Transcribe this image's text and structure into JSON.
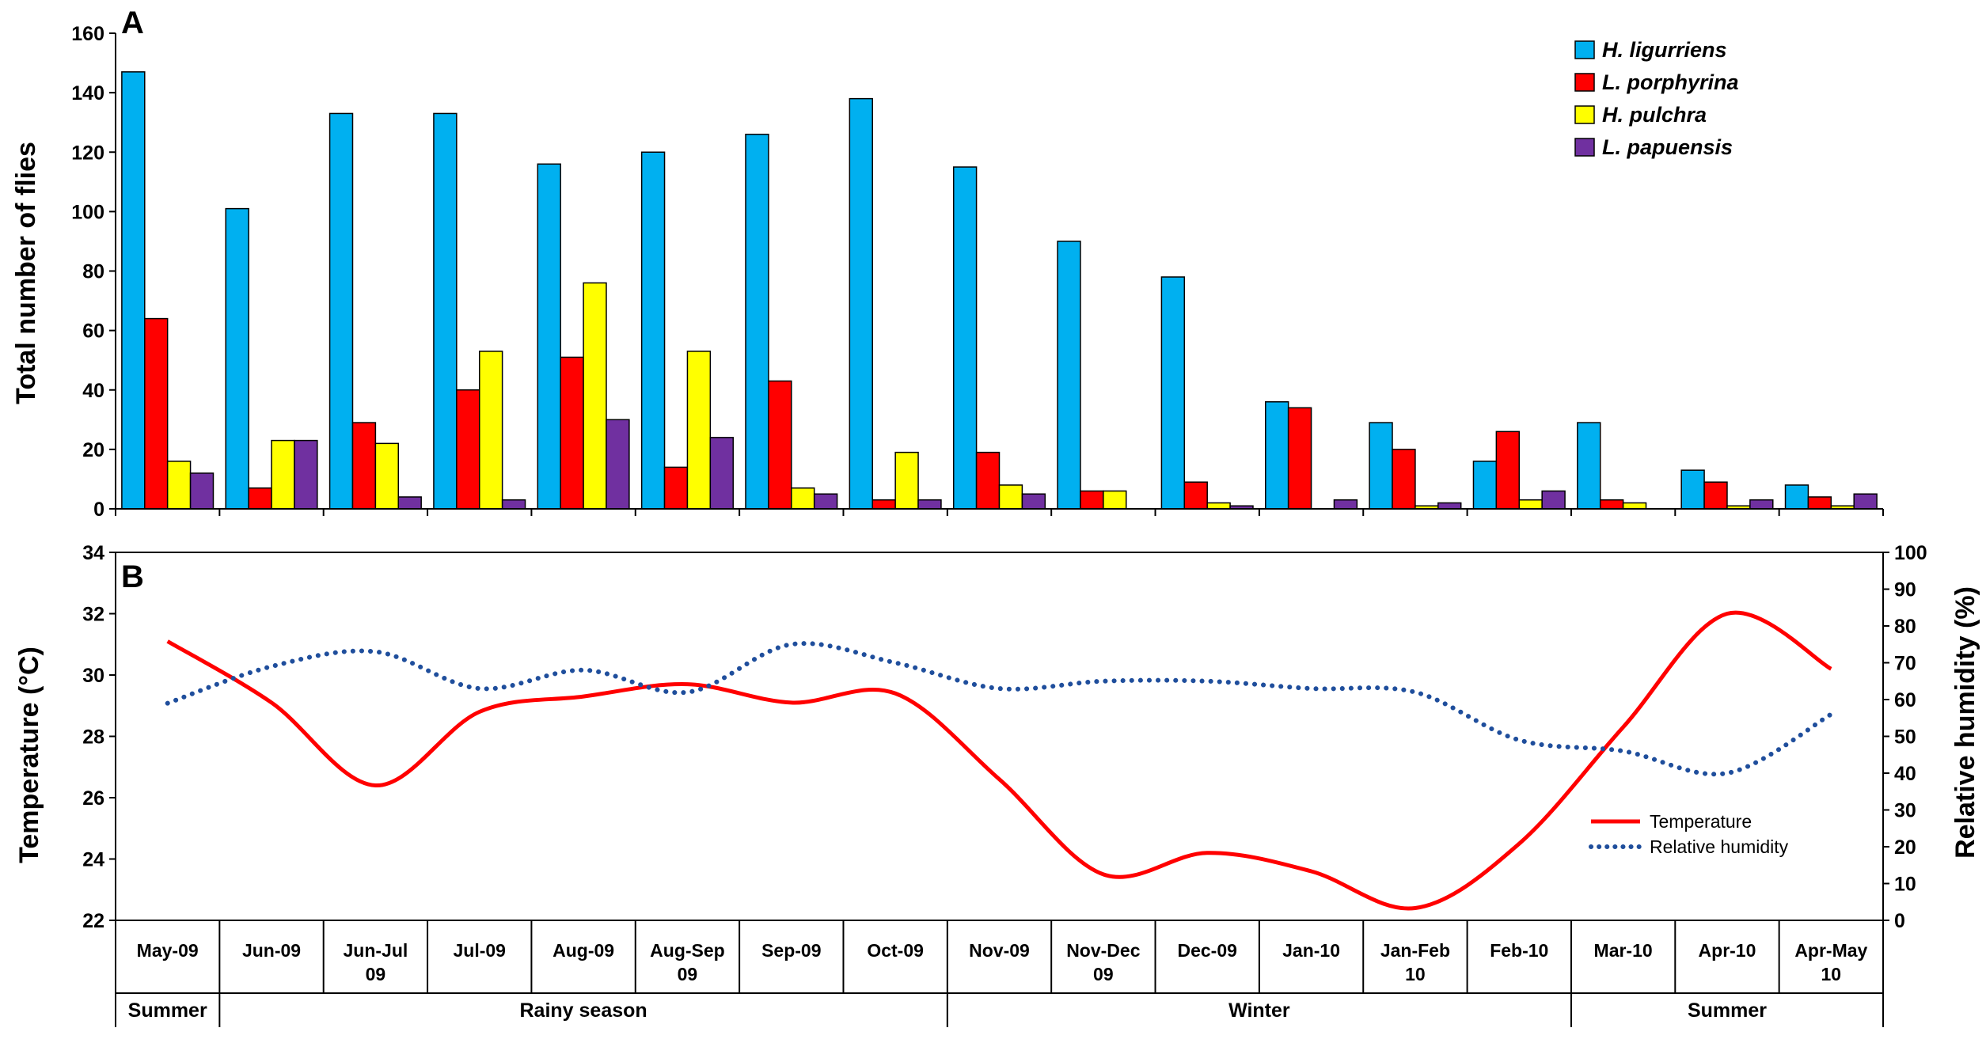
{
  "chart_data": [
    {
      "panel": "A",
      "type": "bar",
      "ylabel": "Total number of flies",
      "ylim": [
        0,
        160
      ],
      "yticks": [
        0,
        20,
        40,
        60,
        80,
        100,
        120,
        140,
        160
      ],
      "categories": [
        "May-09",
        "Jun-09",
        "Jun-Jul 09",
        "Jul-09",
        "Aug-09",
        "Aug-Sep 09",
        "Sep-09",
        "Oct-09",
        "Nov-09",
        "Nov-Dec 09",
        "Dec-09",
        "Jan-10",
        "Jan-Feb 10",
        "Feb-10",
        "Mar-10",
        "Apr-10",
        "Apr-May 10"
      ],
      "legend_position": "top-right",
      "series": [
        {
          "name": "H. ligurriens",
          "color": "#00B0F0",
          "values": [
            147,
            101,
            133,
            133,
            116,
            120,
            126,
            138,
            115,
            90,
            78,
            36,
            29,
            16,
            29,
            13,
            8
          ]
        },
        {
          "name": "L. porphyrina",
          "color": "#FF0000",
          "values": [
            64,
            7,
            29,
            40,
            51,
            14,
            43,
            3,
            19,
            6,
            9,
            34,
            20,
            26,
            3,
            9,
            4
          ]
        },
        {
          "name": "H. pulchra",
          "color": "#FFFF00",
          "values": [
            16,
            23,
            22,
            53,
            76,
            53,
            7,
            19,
            8,
            6,
            2,
            0,
            1,
            3,
            2,
            1,
            1
          ]
        },
        {
          "name": "L. papuensis",
          "color": "#7030A0",
          "values": [
            12,
            23,
            4,
            3,
            30,
            24,
            5,
            3,
            5,
            0,
            1,
            3,
            2,
            6,
            0,
            3,
            5
          ]
        }
      ]
    },
    {
      "panel": "B",
      "type": "line",
      "ylabel": "Temperature (°C)",
      "ylim": [
        22,
        34
      ],
      "yticks": [
        22,
        24,
        26,
        28,
        30,
        32,
        34
      ],
      "y2label": "Relative humidity (%)",
      "y2lim": [
        0,
        100
      ],
      "y2ticks": [
        0,
        10,
        20,
        30,
        40,
        50,
        60,
        70,
        80,
        90,
        100
      ],
      "categories": [
        "May-09",
        "Jun-09",
        "Jun-Jul 09",
        "Jul-09",
        "Aug-09",
        "Aug-Sep 09",
        "Sep-09",
        "Oct-09",
        "Nov-09",
        "Nov-Dec 09",
        "Dec-09",
        "Jan-10",
        "Jan-Feb 10",
        "Feb-10",
        "Mar-10",
        "Apr-10",
        "Apr-May 10"
      ],
      "legend_position": "bottom-right",
      "series": [
        {
          "name": "Temperature",
          "axis": "left",
          "color": "#FF0000",
          "style": "solid",
          "values": [
            31.1,
            29.1,
            26.4,
            28.8,
            29.3,
            29.7,
            29.1,
            29.4,
            26.6,
            23.5,
            24.2,
            23.6,
            22.4,
            24.5,
            28.3,
            32.0,
            30.2
          ]
        },
        {
          "name": "Relative humidity",
          "axis": "right",
          "color": "#1F4E9C",
          "style": "dotted",
          "values": [
            59,
            69,
            73,
            63,
            68,
            62,
            75,
            70,
            63,
            65,
            65,
            63,
            62,
            49,
            46,
            40,
            56
          ]
        }
      ]
    }
  ],
  "seasons": [
    {
      "label": "Summer",
      "from": 0,
      "to": 0
    },
    {
      "label": "Rainy season",
      "from": 1,
      "to": 7
    },
    {
      "label": "Winter",
      "from": 8,
      "to": 13
    },
    {
      "label": "Summer",
      "from": 14,
      "to": 16
    }
  ]
}
